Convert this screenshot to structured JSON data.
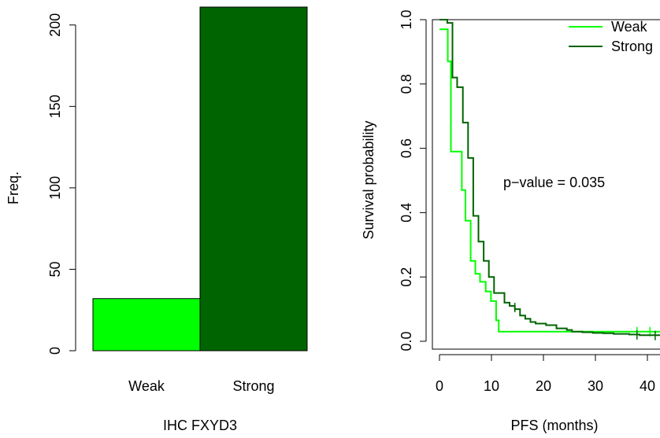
{
  "chart_data": [
    {
      "type": "bar",
      "categories": [
        "Weak",
        "Strong"
      ],
      "values": [
        32,
        211
      ],
      "colors": [
        "#00ff00",
        "#006400"
      ],
      "xlabel": "IHC FXYD3",
      "ylabel": "Freq.",
      "ylim": [
        0,
        211
      ],
      "yticks": [
        0,
        50,
        100,
        150,
        200
      ],
      "grid": false
    },
    {
      "type": "line",
      "step": true,
      "xlabel": "PFS (months)",
      "ylabel": "Survival probability",
      "xlim": [
        0,
        44
      ],
      "ylim": [
        0,
        1
      ],
      "xticks": [
        0,
        10,
        20,
        30,
        40
      ],
      "yticks": [
        0.0,
        0.2,
        0.4,
        0.6,
        0.8,
        1.0
      ],
      "ytick_labels": [
        "0.0",
        "0.2",
        "0.4",
        "0.6",
        "0.8",
        "1.0"
      ],
      "annotation": "p−value =  0.035",
      "legend_position": "top-right",
      "grid": false,
      "series": [
        {
          "name": "Weak",
          "color": "#00ff00",
          "x": [
            0,
            1,
            1.6,
            2.2,
            4.3,
            5.0,
            6.0,
            6.9,
            7.8,
            8.9,
            9.9,
            10.9,
            11.4,
            44
          ],
          "y": [
            0.97,
            0.97,
            0.87,
            0.59,
            0.47,
            0.375,
            0.25,
            0.21,
            0.185,
            0.155,
            0.125,
            0.065,
            0.03,
            0.03
          ],
          "censored_x": [
            38,
            40.5
          ],
          "censored_y": [
            0.03,
            0.03
          ]
        },
        {
          "name": "Strong",
          "color": "#006400",
          "x": [
            0,
            1.5,
            2.5,
            3.4,
            4.5,
            5.5,
            6.5,
            7.5,
            8.5,
            9.5,
            10.5,
            12.5,
            13.5,
            14.5,
            15.5,
            16.5,
            17.5,
            18.5,
            20.5,
            22.5,
            24.5,
            25.5,
            27.5,
            29.5,
            31.5,
            33.5,
            36.5,
            38.5,
            44
          ],
          "y": [
            1.0,
            0.99,
            0.82,
            0.79,
            0.68,
            0.57,
            0.39,
            0.31,
            0.25,
            0.2,
            0.15,
            0.12,
            0.11,
            0.1,
            0.08,
            0.07,
            0.06,
            0.055,
            0.05,
            0.04,
            0.035,
            0.03,
            0.028,
            0.026,
            0.025,
            0.023,
            0.021,
            0.019,
            0.019
          ],
          "censored_x": [
            14.5,
            38,
            41.5
          ],
          "censored_y": [
            0.105,
            0.02,
            0.018
          ]
        }
      ]
    }
  ]
}
